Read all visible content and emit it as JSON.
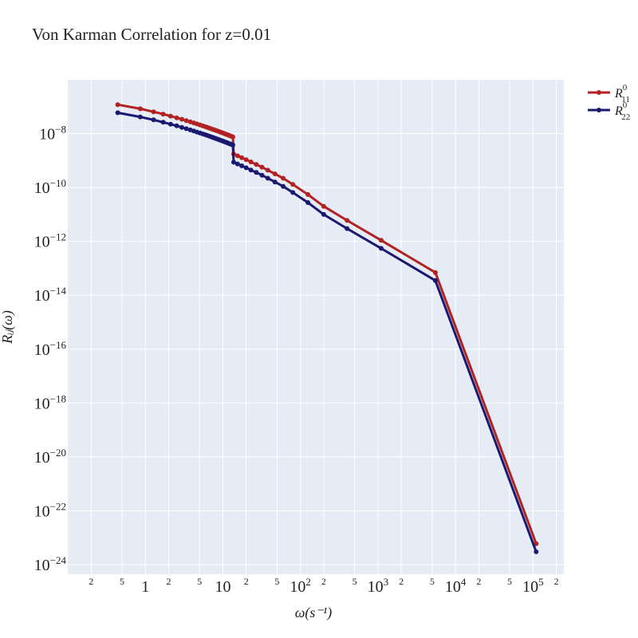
{
  "chart_data": {
    "type": "line",
    "title": "Von Karman Correlation for z=0.01",
    "xlabel": "ω(s⁻¹)",
    "ylabel": "Rᵢⱼ(ω)",
    "x_scale": "log",
    "y_scale": "log",
    "xlim": [
      0.1,
      250000
    ],
    "ylim": [
      1e-24,
      1e-06
    ],
    "grid": true,
    "legend_position": "top-right outside",
    "x_major_ticks": [
      {
        "value": 1,
        "base": "1",
        "exp": ""
      },
      {
        "value": 10,
        "base": "10",
        "exp": ""
      },
      {
        "value": 100,
        "base": "10",
        "exp": "2"
      },
      {
        "value": 1000,
        "base": "10",
        "exp": "3"
      },
      {
        "value": 10000,
        "base": "10",
        "exp": "4"
      },
      {
        "value": 100000,
        "base": "10",
        "exp": "5"
      }
    ],
    "x_minor_ticks": [
      {
        "value": 0.2,
        "label": "2"
      },
      {
        "value": 0.5,
        "label": "5"
      },
      {
        "value": 2,
        "label": "2"
      },
      {
        "value": 5,
        "label": "5"
      },
      {
        "value": 20,
        "label": "2"
      },
      {
        "value": 50,
        "label": "5"
      },
      {
        "value": 200,
        "label": "2"
      },
      {
        "value": 500,
        "label": "5"
      },
      {
        "value": 2000,
        "label": "2"
      },
      {
        "value": 5000,
        "label": "5"
      },
      {
        "value": 20000,
        "label": "2"
      },
      {
        "value": 50000,
        "label": "5"
      },
      {
        "value": 200000,
        "label": "2"
      }
    ],
    "y_major_ticks": [
      {
        "value": 1e-08,
        "base": "10",
        "exp": "−8"
      },
      {
        "value": 1e-10,
        "base": "10",
        "exp": "−10"
      },
      {
        "value": 1e-12,
        "base": "10",
        "exp": "−12"
      },
      {
        "value": 1e-14,
        "base": "10",
        "exp": "−14"
      },
      {
        "value": 1e-16,
        "base": "10",
        "exp": "−16"
      },
      {
        "value": 1e-18,
        "base": "10",
        "exp": "−18"
      },
      {
        "value": 1e-20,
        "base": "10",
        "exp": "−20"
      },
      {
        "value": 1e-22,
        "base": "10",
        "exp": "−22"
      },
      {
        "value": 1e-24,
        "base": "10",
        "exp": "−24"
      }
    ],
    "x_range": {
      "min": 0.44,
      "max": 110000
    },
    "series": [
      {
        "name_base": "R",
        "name_sup": "0",
        "name_sub": "11",
        "color": "#b22222",
        "x": [
          110000,
          5500,
          1100,
          400,
          200,
          125,
          80,
          60,
          47,
          38,
          32,
          27,
          23,
          20,
          17.5,
          15.5,
          13.8
        ],
        "y": [
          6e-24,
          7e-14,
          1.1e-12,
          6e-12,
          2e-11,
          5.5e-11,
          1.3e-10,
          2.2e-10,
          3.2e-10,
          4.4e-10,
          5.7e-10,
          7.2e-10,
          8.9e-10,
          1.08e-09,
          1.28e-09,
          1.5e-09,
          1.74e-09
        ],
        "dense_fit": {
          "a": 7.6e-08,
          "b": -0.63,
          "c": -0.65
        }
      },
      {
        "name_base": "R",
        "name_sup": "0",
        "name_sub": "22",
        "color": "#191970",
        "x": [
          110000,
          5500,
          1100,
          400,
          200,
          125,
          80,
          60,
          47,
          38,
          32,
          27,
          23,
          20,
          17.5,
          15.5,
          13.8
        ],
        "y": [
          3e-24,
          3.5e-14,
          5.5e-13,
          3e-12,
          1e-11,
          2.75e-11,
          6.5e-11,
          1.1e-10,
          1.6e-10,
          2.2e-10,
          2.85e-10,
          3.6e-10,
          4.45e-10,
          5.4e-10,
          6.4e-10,
          7.5e-10,
          8.7e-10
        ],
        "dense_fit": {
          "a": 3.8e-08,
          "b": -0.63,
          "c": -0.65
        }
      }
    ]
  },
  "colors": {
    "plot_bg": "#e5ecf6",
    "grid": "#ffffff",
    "paper_bg": "#ffffff"
  }
}
